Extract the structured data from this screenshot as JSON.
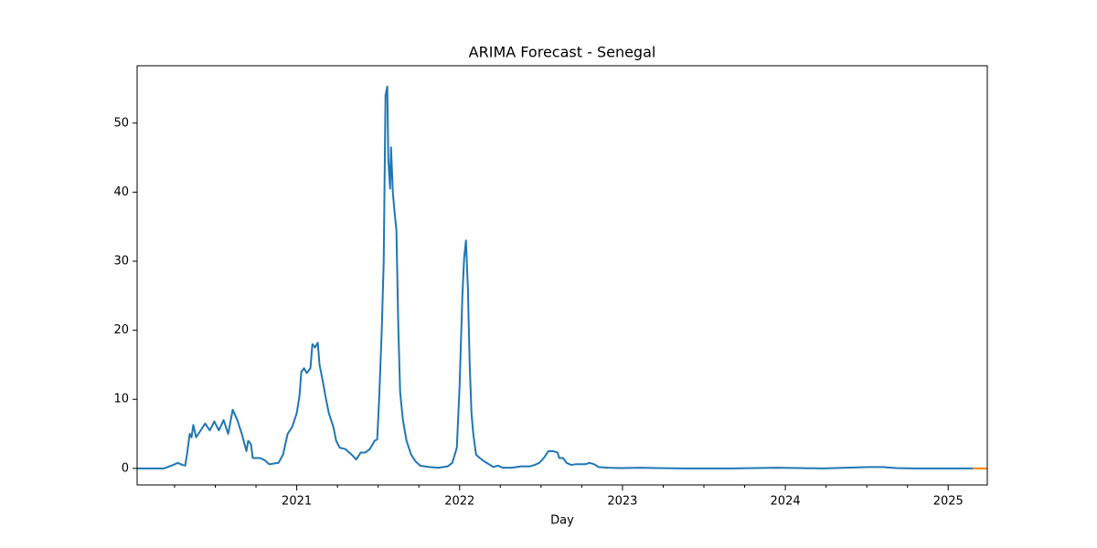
{
  "chart_data": {
    "type": "line",
    "title": "ARIMA Forecast - Senegal",
    "x_label": "Day",
    "xlim": [
      2020.02,
      2025.24
    ],
    "xticks": [
      {
        "value": 2021,
        "label": "2021"
      },
      {
        "value": 2022,
        "label": "2022"
      },
      {
        "value": 2023,
        "label": "2023"
      },
      {
        "value": 2024,
        "label": "2024"
      },
      {
        "value": 2025,
        "label": "2025"
      }
    ],
    "ylim": [
      -2.4,
      58.3
    ],
    "yticks": [
      0,
      10,
      20,
      30,
      40,
      50
    ],
    "grid": false,
    "series": [
      {
        "color": "#1f77b4",
        "x": [
          2020.02,
          2020.185,
          2020.242,
          2020.27,
          2020.298,
          2020.315,
          2020.326,
          2020.343,
          2020.354,
          2020.365,
          2020.382,
          2020.41,
          2020.438,
          2020.466,
          2020.494,
          2020.522,
          2020.551,
          2020.579,
          2020.607,
          2020.635,
          2020.663,
          2020.691,
          2020.702,
          2020.719,
          2020.73,
          2020.775,
          2020.803,
          2020.831,
          2020.888,
          2020.916,
          2020.944,
          2020.972,
          2021.0,
          2021.017,
          2021.028,
          2021.045,
          2021.062,
          2021.084,
          2021.096,
          2021.112,
          2021.129,
          2021.14,
          2021.157,
          2021.18,
          2021.197,
          2021.225,
          2021.242,
          2021.264,
          2021.298,
          2021.337,
          2021.365,
          2021.393,
          2021.421,
          2021.449,
          2021.478,
          2021.494,
          2021.506,
          2021.522,
          2021.534,
          2021.545,
          2021.556,
          2021.562,
          2021.573,
          2021.579,
          2021.59,
          2021.601,
          2021.612,
          2021.624,
          2021.635,
          2021.652,
          2021.674,
          2021.702,
          2021.73,
          2021.758,
          2021.815,
          2021.871,
          2021.927,
          2021.955,
          2021.983,
          2022.0,
          2022.017,
          2022.028,
          2022.039,
          2022.051,
          2022.062,
          2022.073,
          2022.084,
          2022.101,
          2022.124,
          2022.152,
          2022.208,
          2022.236,
          2022.264,
          2022.32,
          2022.376,
          2022.433,
          2022.461,
          2022.489,
          2022.517,
          2022.545,
          2022.573,
          2022.601,
          2022.612,
          2022.635,
          2022.657,
          2022.685,
          2022.713,
          2022.77,
          2022.798,
          2022.826,
          2022.854,
          2022.91,
          2022.994,
          2023.107,
          2023.219,
          2023.388,
          2023.669,
          2023.949,
          2024.23,
          2024.511,
          2024.596,
          2024.68,
          2024.792,
          2025.152
        ],
        "values": [
          0,
          0,
          0.5,
          0.8,
          0.5,
          0.4,
          2,
          5,
          4.5,
          6.3,
          4.5,
          5.5,
          6.5,
          5.5,
          6.8,
          5.5,
          7,
          5,
          8.5,
          7,
          5,
          2.5,
          4,
          3.5,
          1.5,
          1.5,
          1.2,
          0.6,
          0.8,
          2,
          5,
          6,
          8,
          10.5,
          14,
          14.5,
          13.8,
          14.5,
          18,
          17.5,
          18.2,
          15,
          13,
          10,
          8,
          6,
          4,
          3,
          2.8,
          2,
          1.3,
          2.3,
          2.3,
          2.8,
          4,
          4.2,
          10,
          20,
          30,
          54,
          55.3,
          45,
          40.5,
          46.5,
          40,
          37,
          34.5,
          20,
          11,
          7,
          4,
          2,
          1,
          0.4,
          0.2,
          0.1,
          0.3,
          0.8,
          3,
          12,
          25,
          30.5,
          33,
          26,
          15,
          8,
          5,
          2,
          1.5,
          1,
          0.2,
          0.4,
          0.1,
          0.1,
          0.3,
          0.3,
          0.5,
          0.8,
          1.5,
          2.5,
          2.5,
          2.3,
          1.5,
          1.5,
          0.8,
          0.5,
          0.6,
          0.6,
          0.8,
          0.6,
          0.2,
          0.1,
          0.05,
          0.1,
          0.05,
          0,
          0,
          0.1,
          0,
          0.2,
          0.2,
          0.05,
          0,
          0
        ]
      },
      {
        "color": "#ff7f0e",
        "x": [
          2025.152,
          2025.24
        ],
        "values": [
          0,
          0
        ]
      }
    ]
  }
}
